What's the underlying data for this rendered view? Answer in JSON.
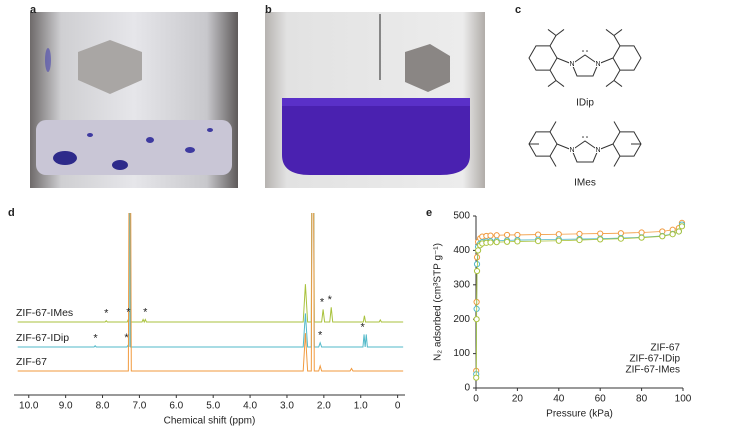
{
  "panel_labels": [
    "a",
    "b",
    "c",
    "d",
    "e"
  ],
  "structures": [
    {
      "label": "IDip",
      "atoms": [
        "N",
        "N"
      ]
    },
    {
      "label": "IMes",
      "atoms": [
        "N",
        "N"
      ]
    }
  ],
  "chart_data": [
    {
      "type": "line",
      "xlabel": "Chemical shift (ppm)",
      "xlim": [
        10.4,
        -0.2
      ],
      "xticks": [
        {
          "value": 10,
          "label": "10.0"
        },
        {
          "value": 9,
          "label": "9.0"
        },
        {
          "value": 8,
          "label": "8.0"
        },
        {
          "value": 7,
          "label": "7.0"
        },
        {
          "value": 6,
          "label": "6.0"
        },
        {
          "value": 5,
          "label": "5.0"
        },
        {
          "value": 4,
          "label": "4.0"
        },
        {
          "value": 3,
          "label": "3.0"
        },
        {
          "value": 2,
          "label": "2.0"
        },
        {
          "value": 1,
          "label": "1.0"
        },
        0
      ],
      "series": [
        {
          "name": "ZIF-67-IMes",
          "color": "#a9c23c",
          "x": [
            10.3,
            7.93,
            7.9,
            7.87,
            7.33,
            7.3,
            7.28,
            7.26,
            7.24,
            6.93,
            6.9,
            6.87,
            6.84,
            6.81,
            2.56,
            2.5,
            2.44,
            2.34,
            2.3,
            2.26,
            2.06,
            2.02,
            1.98,
            1.84,
            1.8,
            1.76,
            0.93,
            0.9,
            0.87,
            0.5,
            0.47,
            0.44,
            -0.15
          ],
          "values": [
            0,
            0,
            0.03,
            0,
            0,
            0.06,
            0,
            10,
            0,
            0,
            0.06,
            0,
            0.06,
            0,
            0,
            0.9,
            0,
            0,
            10,
            0,
            0,
            0.3,
            0,
            0,
            0.35,
            0,
            0,
            0.15,
            0,
            0,
            0.05,
            0,
            0
          ],
          "annotations": [
            {
              "text": "*",
              "x": 7.9
            },
            {
              "text": "*",
              "x": 7.3
            },
            {
              "text": "*",
              "x": 6.84
            },
            {
              "text": "*",
              "x": 2.05
            },
            {
              "text": "*",
              "x": 1.84
            }
          ]
        },
        {
          "name": "ZIF-67-IDip",
          "color": "#52b9c9",
          "x": [
            10.3,
            8.23,
            8.2,
            8.17,
            7.34,
            7.3,
            7.28,
            7.26,
            7.24,
            2.56,
            2.5,
            2.44,
            2.34,
            2.3,
            2.26,
            2.14,
            2.1,
            2.06,
            0.94,
            0.91,
            0.88,
            0.85,
            0.82,
            -0.15
          ],
          "values": [
            0,
            0,
            0.03,
            0,
            0,
            0.05,
            0,
            10,
            0,
            0,
            0.8,
            0,
            0,
            10,
            0,
            0,
            0.1,
            0,
            0,
            0.3,
            0,
            0.3,
            0,
            0
          ],
          "annotations": [
            {
              "text": "*",
              "x": 8.19
            },
            {
              "text": "*",
              "x": 7.35
            },
            {
              "text": "*",
              "x": 2.1
            },
            {
              "text": "*",
              "x": 0.95
            }
          ]
        },
        {
          "name": "ZIF-67",
          "color": "#f19a3e",
          "x": [
            10.3,
            7.3,
            7.26,
            7.22,
            2.56,
            2.5,
            2.44,
            2.34,
            2.3,
            2.26,
            2.14,
            2.1,
            2.06,
            1.29,
            1.25,
            1.21,
            -0.15
          ],
          "values": [
            0,
            0,
            10,
            0,
            0,
            0.9,
            0,
            0,
            10,
            0,
            0,
            0.12,
            0,
            0,
            0.06,
            0,
            0
          ],
          "annotations": []
        }
      ]
    },
    {
      "type": "line",
      "marker": "circle-open",
      "legend": "lower right",
      "xlabel": "Pressure (kPa)",
      "ylabel": "N₂ adsorbed (cm³STP g⁻¹)",
      "xlim": [
        0,
        100
      ],
      "ylim": [
        0,
        500
      ],
      "xticks": [
        0,
        20,
        40,
        60,
        80,
        100
      ],
      "yticks": [
        0,
        100,
        200,
        300,
        400,
        500
      ],
      "series": [
        {
          "name": "ZIF-67",
          "color": "#f19a3e",
          "x": [
            0.1,
            0.3,
            0.5,
            1,
            2,
            3,
            5,
            7,
            10,
            15,
            20,
            30,
            40,
            50,
            60,
            70,
            80,
            90,
            95,
            98,
            99.5
          ],
          "values": [
            50,
            250,
            380,
            425,
            435,
            440,
            442,
            443,
            444,
            445,
            445,
            446,
            447,
            448,
            449,
            450,
            452,
            455,
            460,
            465,
            480
          ]
        },
        {
          "name": "ZIF-67-IDip",
          "color": "#52b9c9",
          "x": [
            0.1,
            0.3,
            0.5,
            1,
            2,
            3,
            5,
            7,
            10,
            15,
            20,
            30,
            40,
            50,
            60,
            70,
            80,
            90,
            95,
            98,
            99.5
          ],
          "values": [
            40,
            230,
            360,
            410,
            420,
            424,
            426,
            427,
            428,
            429,
            430,
            431,
            432,
            433,
            434,
            436,
            438,
            442,
            448,
            455,
            475
          ]
        },
        {
          "name": "ZIF-67-IMes",
          "color": "#a9c23c",
          "x": [
            0.1,
            0.3,
            0.5,
            1,
            2,
            3,
            5,
            7,
            10,
            15,
            20,
            30,
            40,
            50,
            60,
            70,
            80,
            90,
            95,
            98,
            99.5
          ],
          "values": [
            30,
            200,
            340,
            400,
            415,
            420,
            422,
            423,
            424,
            425,
            426,
            427,
            428,
            430,
            432,
            434,
            437,
            441,
            447,
            455,
            470
          ]
        }
      ]
    }
  ]
}
